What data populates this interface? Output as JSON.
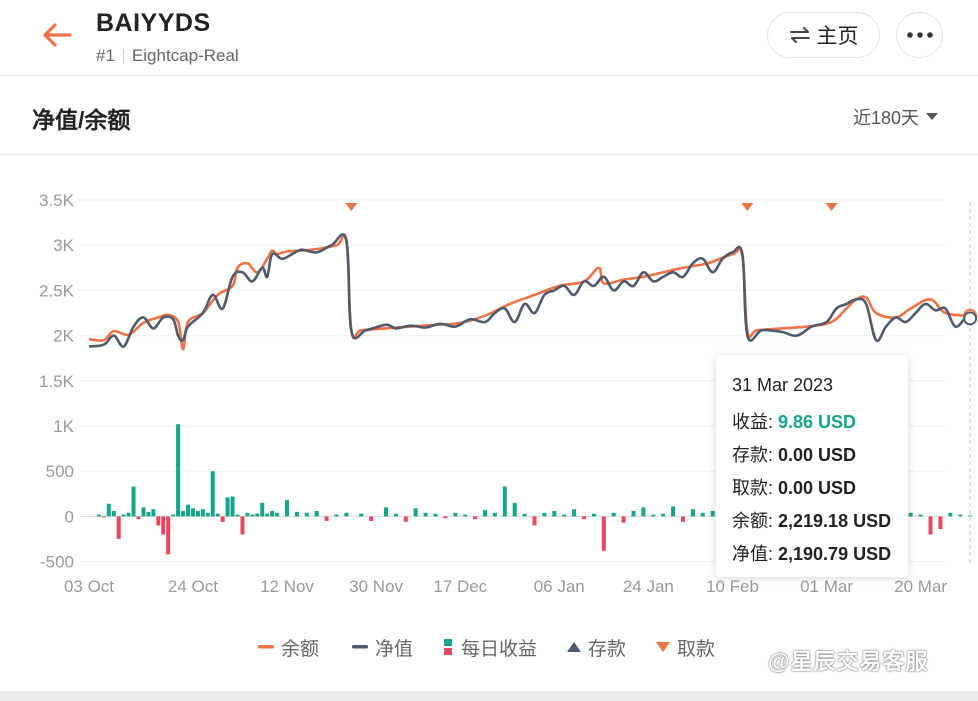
{
  "header": {
    "account_name": "BAIYYDS",
    "account_rank": "#1",
    "account_server": "Eightcap-Real",
    "home_label": "主页"
  },
  "section": {
    "title": "净值/余额",
    "range_label": "近180天"
  },
  "colors": {
    "balance": "#f07247",
    "equity": "#4f5a6b",
    "profit_pos": "#16a589",
    "profit_neg": "#e8485f",
    "deposit": "#4f5a6b",
    "withdrawal": "#f07247"
  },
  "chart_data": {
    "type": "line",
    "y_ticks": [
      "3.5K",
      "3K",
      "2.5K",
      "2K",
      "1.5K",
      "1K",
      "500",
      "0",
      "-500"
    ],
    "y_tick_values": [
      3500,
      3000,
      2500,
      2000,
      1500,
      1000,
      500,
      0,
      -500
    ],
    "ylim": [
      -500,
      3500
    ],
    "x_ticks": [
      "03 Oct",
      "24 Oct",
      "12 Nov",
      "30 Nov",
      "17 Dec",
      "06 Jan",
      "24 Jan",
      "10 Feb",
      "01 Mar",
      "20 Mar"
    ],
    "x_tick_days": [
      0,
      21,
      40,
      58,
      75,
      95,
      113,
      130,
      149,
      168
    ],
    "grid": true,
    "series": [
      {
        "name": "余额",
        "points": [
          [
            0,
            1960
          ],
          [
            3,
            1950
          ],
          [
            5,
            2050
          ],
          [
            8,
            2010
          ],
          [
            11,
            2140
          ],
          [
            14,
            2200
          ],
          [
            16,
            2230
          ],
          [
            18,
            2150
          ],
          [
            19,
            1850
          ],
          [
            20,
            2150
          ],
          [
            23,
            2250
          ],
          [
            26,
            2450
          ],
          [
            29,
            2550
          ],
          [
            30,
            2750
          ],
          [
            32,
            2800
          ],
          [
            34,
            2700
          ],
          [
            36,
            2850
          ],
          [
            37,
            2940
          ],
          [
            38,
            2900
          ],
          [
            40,
            2930
          ],
          [
            45,
            2950
          ],
          [
            50,
            3000
          ],
          [
            52,
            3050
          ],
          [
            53,
            2050
          ],
          [
            55,
            2060
          ],
          [
            60,
            2080
          ],
          [
            65,
            2100
          ],
          [
            70,
            2120
          ],
          [
            75,
            2140
          ],
          [
            80,
            2220
          ],
          [
            85,
            2350
          ],
          [
            90,
            2450
          ],
          [
            95,
            2550
          ],
          [
            100,
            2600
          ],
          [
            103,
            2750
          ],
          [
            104,
            2580
          ],
          [
            108,
            2620
          ],
          [
            112,
            2650
          ],
          [
            116,
            2700
          ],
          [
            120,
            2750
          ],
          [
            125,
            2800
          ],
          [
            130,
            2900
          ],
          [
            132,
            2880
          ],
          [
            133,
            2050
          ],
          [
            135,
            2060
          ],
          [
            140,
            2080
          ],
          [
            145,
            2100
          ],
          [
            150,
            2150
          ],
          [
            153,
            2300
          ],
          [
            155,
            2400
          ],
          [
            157,
            2420
          ],
          [
            159,
            2250
          ],
          [
            163,
            2200
          ],
          [
            166,
            2300
          ],
          [
            170,
            2400
          ],
          [
            173,
            2250
          ],
          [
            178,
            2219
          ]
        ]
      },
      {
        "name": "净值",
        "points": [
          [
            0,
            1880
          ],
          [
            3,
            1900
          ],
          [
            5,
            2000
          ],
          [
            7,
            1880
          ],
          [
            9,
            2100
          ],
          [
            11,
            2200
          ],
          [
            13,
            2080
          ],
          [
            15,
            2200
          ],
          [
            17,
            2180
          ],
          [
            18,
            2000
          ],
          [
            19,
            1950
          ],
          [
            20,
            2100
          ],
          [
            23,
            2250
          ],
          [
            25,
            2450
          ],
          [
            27,
            2300
          ],
          [
            29,
            2650
          ],
          [
            31,
            2700
          ],
          [
            33,
            2600
          ],
          [
            35,
            2750
          ],
          [
            36,
            2650
          ],
          [
            37,
            2900
          ],
          [
            39,
            2850
          ],
          [
            41,
            2900
          ],
          [
            43,
            2950
          ],
          [
            46,
            2920
          ],
          [
            49,
            3000
          ],
          [
            52,
            3050
          ],
          [
            53,
            2050
          ],
          [
            56,
            2060
          ],
          [
            60,
            2120
          ],
          [
            62,
            2080
          ],
          [
            65,
            2110
          ],
          [
            68,
            2090
          ],
          [
            71,
            2130
          ],
          [
            74,
            2100
          ],
          [
            77,
            2180
          ],
          [
            80,
            2150
          ],
          [
            82,
            2250
          ],
          [
            84,
            2300
          ],
          [
            86,
            2150
          ],
          [
            88,
            2350
          ],
          [
            90,
            2250
          ],
          [
            92,
            2450
          ],
          [
            94,
            2500
          ],
          [
            96,
            2550
          ],
          [
            98,
            2450
          ],
          [
            100,
            2600
          ],
          [
            102,
            2550
          ],
          [
            104,
            2650
          ],
          [
            106,
            2500
          ],
          [
            108,
            2600
          ],
          [
            110,
            2550
          ],
          [
            112,
            2700
          ],
          [
            114,
            2600
          ],
          [
            116,
            2650
          ],
          [
            118,
            2700
          ],
          [
            120,
            2650
          ],
          [
            122,
            2800
          ],
          [
            124,
            2850
          ],
          [
            126,
            2700
          ],
          [
            128,
            2850
          ],
          [
            130,
            2920
          ],
          [
            132,
            2900
          ],
          [
            133,
            2000
          ],
          [
            136,
            2060
          ],
          [
            140,
            2040
          ],
          [
            143,
            2000
          ],
          [
            146,
            2100
          ],
          [
            149,
            2150
          ],
          [
            151,
            2300
          ],
          [
            153,
            2350
          ],
          [
            155,
            2400
          ],
          [
            157,
            2350
          ],
          [
            159,
            1950
          ],
          [
            161,
            2100
          ],
          [
            163,
            2200
          ],
          [
            165,
            2150
          ],
          [
            167,
            2250
          ],
          [
            169,
            2350
          ],
          [
            171,
            2280
          ],
          [
            173,
            2300
          ],
          [
            175,
            2100
          ],
          [
            177,
            2190
          ],
          [
            178,
            2190
          ]
        ]
      }
    ],
    "daily_profit": {
      "name": "每日收益",
      "days": [
        2,
        3,
        4,
        5,
        6,
        7,
        8,
        9,
        10,
        11,
        12,
        13,
        14,
        15,
        16,
        17,
        18,
        19,
        20,
        21,
        22,
        23,
        24,
        25,
        26,
        27,
        28,
        29,
        30,
        31,
        32,
        33,
        34,
        35,
        36,
        37,
        38,
        40,
        42,
        44,
        46,
        48,
        50,
        52,
        55,
        57,
        60,
        62,
        64,
        66,
        68,
        70,
        72,
        74,
        76,
        78,
        80,
        82,
        84,
        86,
        88,
        90,
        92,
        94,
        96,
        98,
        100,
        102,
        104,
        106,
        108,
        110,
        112,
        114,
        116,
        118,
        120,
        122,
        124,
        126,
        128,
        130,
        132,
        134,
        136,
        138,
        140,
        142,
        144,
        146,
        148,
        150,
        152,
        154,
        156,
        158,
        160,
        162,
        164,
        166,
        168,
        170,
        172,
        174,
        176,
        178
      ],
      "values": [
        20,
        -10,
        140,
        60,
        -250,
        20,
        40,
        330,
        -30,
        100,
        50,
        80,
        -100,
        -200,
        -420,
        20,
        1020,
        60,
        130,
        90,
        60,
        80,
        40,
        500,
        30,
        -60,
        210,
        220,
        20,
        -200,
        40,
        20,
        30,
        150,
        30,
        60,
        40,
        180,
        50,
        40,
        60,
        -50,
        20,
        40,
        30,
        -50,
        100,
        30,
        -60,
        90,
        40,
        30,
        -20,
        40,
        20,
        -30,
        70,
        40,
        330,
        150,
        30,
        -100,
        40,
        60,
        20,
        80,
        -30,
        30,
        -380,
        40,
        -70,
        60,
        100,
        20,
        30,
        110,
        -60,
        80,
        40,
        60,
        30,
        280,
        -90,
        70,
        60,
        40,
        120,
        30,
        50,
        -60,
        20,
        40,
        80,
        30,
        -60,
        20,
        50,
        -60,
        30,
        40,
        20,
        -200,
        -140,
        40,
        20,
        10
      ]
    },
    "withdrawals": {
      "name": "取款",
      "days": [
        53,
        133,
        150
      ]
    },
    "deposits": {
      "name": "存款",
      "days": []
    },
    "tooltip": {
      "date": "31 Mar 2023",
      "profit_label": "收益",
      "profit_value": "9.86 USD",
      "deposit_label": "存款",
      "deposit_value": "0.00 USD",
      "withdraw_label": "取款",
      "withdraw_value": "0.00 USD",
      "balance_label": "余额",
      "balance_value": "2,219.18 USD",
      "equity_label": "净值",
      "equity_value": "2,190.79 USD"
    },
    "legend": [
      {
        "label": "余额",
        "marker": "line",
        "color": "#f07247"
      },
      {
        "label": "净值",
        "marker": "line",
        "color": "#4f5a6b"
      },
      {
        "label": "每日收益",
        "marker": "bars",
        "color": "#16a589"
      },
      {
        "label": "存款",
        "marker": "triangle-up",
        "color": "#4f5a6b"
      },
      {
        "label": "取款",
        "marker": "triangle-down",
        "color": "#f07247"
      }
    ]
  },
  "watermark": "@星辰交易客服"
}
